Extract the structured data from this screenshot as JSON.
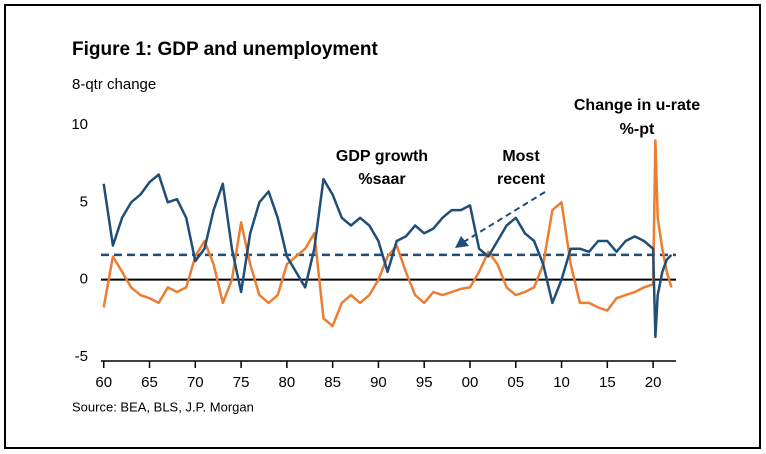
{
  "chart_data": {
    "type": "line",
    "title": "Figure 1: GDP and unemployment",
    "subtitle": "8-qtr change",
    "source": "Source: BEA, BLS, J.P. Morgan",
    "annotations": [
      "GDP growth",
      "%saar",
      "Most",
      "recent",
      "Change in u-rate",
      "%-pt"
    ],
    "x": [
      1960,
      1961,
      1962,
      1963,
      1964,
      1965,
      1966,
      1967,
      1968,
      1969,
      1970,
      1971,
      1972,
      1973,
      1974,
      1975,
      1976,
      1977,
      1978,
      1979,
      1980,
      1981,
      1982,
      1983,
      1984,
      1985,
      1986,
      1987,
      1988,
      1989,
      1990,
      1991,
      1992,
      1993,
      1994,
      1995,
      1996,
      1997,
      1998,
      1999,
      2000,
      2001,
      2002,
      2003,
      2004,
      2005,
      2006,
      2007,
      2008,
      2009,
      2010,
      2011,
      2012,
      2013,
      2014,
      2015,
      2016,
      2017,
      2018,
      2019,
      2020,
      2020.25,
      2020.5,
      2021,
      2021.5,
      2022
    ],
    "series": [
      {
        "name": "GDP growth",
        "color": "#1f4e79",
        "values": [
          6.2,
          2.2,
          4,
          5,
          5.5,
          6.3,
          6.8,
          5,
          5.2,
          4,
          1.2,
          2,
          4.5,
          6.2,
          2,
          -0.8,
          3,
          5,
          5.7,
          4,
          1.5,
          0.5,
          -0.5,
          2,
          6.5,
          5.5,
          4,
          3.5,
          4,
          3.5,
          2.5,
          0.5,
          2.5,
          2.8,
          3.5,
          3,
          3.3,
          4,
          4.5,
          4.5,
          4.8,
          2,
          1.5,
          2.5,
          3.5,
          4,
          3,
          2.5,
          1,
          -1.5,
          0,
          2,
          2,
          1.8,
          2.5,
          2.5,
          1.8,
          2.5,
          2.8,
          2.5,
          2,
          -3.7,
          -1,
          0.5,
          1.3,
          1.6
        ]
      },
      {
        "name": "Change in u-rate",
        "color": "#ed7d31",
        "values": [
          -1.8,
          1.5,
          0.5,
          -0.5,
          -1,
          -1.2,
          -1.5,
          -0.5,
          -0.8,
          -0.5,
          1.5,
          2.5,
          1,
          -1.5,
          0,
          3.7,
          1,
          -1,
          -1.5,
          -1,
          1,
          1.5,
          2,
          3,
          -2.5,
          -3,
          -1.5,
          -1,
          -1.5,
          -1,
          0,
          1.5,
          2.2,
          0.5,
          -1,
          -1.5,
          -0.8,
          -1,
          -0.8,
          -0.6,
          -0.5,
          0.5,
          1.8,
          1,
          -0.5,
          -1,
          -0.8,
          -0.5,
          1,
          4.5,
          5,
          1,
          -1.5,
          -1.5,
          -1.8,
          -2,
          -1.2,
          -1,
          -0.8,
          -0.5,
          -0.3,
          9,
          4,
          2,
          0.5,
          -0.5
        ]
      }
    ],
    "reference_line": 1.6,
    "xlim": [
      1959.7,
      2022.5
    ],
    "xticks": [
      {
        "value": 1960,
        "label": "60"
      },
      {
        "value": 1965,
        "label": "65"
      },
      {
        "value": 1970,
        "label": "70"
      },
      {
        "value": 1975,
        "label": "75"
      },
      {
        "value": 1980,
        "label": "80"
      },
      {
        "value": 1985,
        "label": "85"
      },
      {
        "value": 1990,
        "label": "90"
      },
      {
        "value": 1995,
        "label": "95"
      },
      {
        "value": 2000,
        "label": "00"
      },
      {
        "value": 2005,
        "label": "05"
      },
      {
        "value": 2010,
        "label": "10"
      },
      {
        "value": 2015,
        "label": "15"
      },
      {
        "value": 2020,
        "label": "20"
      }
    ],
    "ylim": [
      -5,
      10
    ],
    "yticks": [
      -5,
      0,
      5,
      10
    ]
  }
}
